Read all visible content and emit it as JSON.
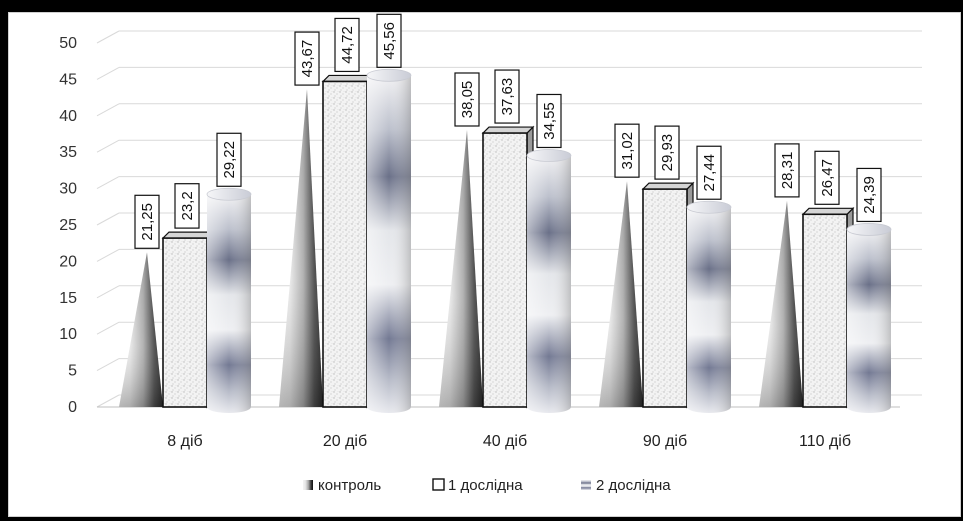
{
  "chart_data": {
    "type": "bar",
    "title": "",
    "xlabel": "",
    "ylabel": "",
    "categories": [
      "8 діб",
      "20 діб",
      "40 діб",
      "90 діб",
      "110 діб"
    ],
    "ylim": [
      0,
      50
    ],
    "yticks": [
      0,
      5,
      10,
      15,
      20,
      25,
      30,
      35,
      40,
      45,
      50
    ],
    "grid": true,
    "legend_position": "bottom",
    "series": [
      {
        "name": "контроль",
        "shape": "cone",
        "values": [
          21.25,
          43.67,
          38.05,
          31.02,
          28.31
        ],
        "labels": [
          "21,25",
          "43,67",
          "38,05",
          "31,02",
          "28,31"
        ]
      },
      {
        "name": "1 дослідна",
        "shape": "box",
        "values": [
          23.2,
          44.72,
          37.63,
          29.93,
          26.47
        ],
        "labels": [
          "23,2",
          "44,72",
          "37,63",
          "29,93",
          "26,47"
        ]
      },
      {
        "name": "2 дослідна",
        "shape": "cylinder",
        "values": [
          29.22,
          45.56,
          34.55,
          27.44,
          24.39
        ],
        "labels": [
          "29,22",
          "45,56",
          "34,55",
          "27,44",
          "24,39"
        ]
      }
    ]
  }
}
